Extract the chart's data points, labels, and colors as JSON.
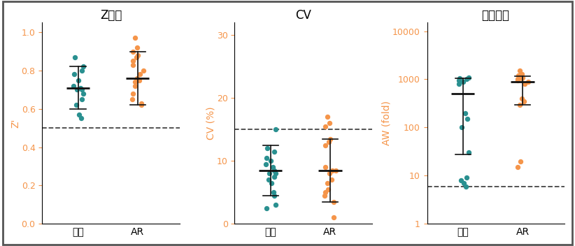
{
  "panel1": {
    "title": "Z因子",
    "ylabel": "Z'",
    "ylim": [
      0.0,
      1.05
    ],
    "yticks": [
      0.0,
      0.2,
      0.4,
      0.6,
      0.8,
      1.0
    ],
    "dashed_line": 0.5,
    "teal_data": [
      0.82,
      0.87,
      0.8,
      0.78,
      0.75,
      0.72,
      0.71,
      0.7,
      0.7,
      0.68,
      0.65,
      0.62,
      0.57,
      0.55
    ],
    "teal_mean": 0.71,
    "teal_sd_low": 0.6,
    "teal_sd_high": 0.82,
    "orange_data": [
      0.97,
      0.92,
      0.9,
      0.88,
      0.87,
      0.85,
      0.83,
      0.8,
      0.78,
      0.76,
      0.75,
      0.74,
      0.72,
      0.68,
      0.65,
      0.63,
      0.62
    ],
    "orange_mean": 0.76,
    "orange_sd_low": 0.62,
    "orange_sd_high": 0.9,
    "xtick_labels": [
      "传统",
      "AR"
    ]
  },
  "panel2": {
    "title": "CV",
    "ylabel": "CV (%)",
    "ylim": [
      0,
      32
    ],
    "yticks": [
      0,
      10,
      20,
      30
    ],
    "dashed_line": 15,
    "teal_data": [
      15.0,
      12.0,
      11.5,
      10.5,
      10.0,
      9.5,
      9.0,
      8.5,
      8.0,
      8.0,
      7.5,
      7.0,
      6.5,
      5.0,
      4.5,
      3.0,
      2.5
    ],
    "teal_mean": 8.5,
    "teal_sd_low": 4.5,
    "teal_sd_high": 12.5,
    "orange_data": [
      17.0,
      16.0,
      15.5,
      13.5,
      13.0,
      12.5,
      9.0,
      8.5,
      8.5,
      8.0,
      7.0,
      6.5,
      5.5,
      5.0,
      4.5,
      3.5,
      1.0
    ],
    "orange_mean": 8.5,
    "orange_sd_low": 3.5,
    "orange_sd_high": 13.5,
    "xtick_labels": [
      "传统",
      "AR"
    ]
  },
  "panel3": {
    "title": "检测窗口",
    "ylabel": "AW (fold)",
    "ylim": [
      1,
      15000
    ],
    "yticks": [
      1,
      10,
      100,
      1000,
      10000
    ],
    "dashed_line": 6,
    "teal_data": [
      1100,
      1050,
      1000,
      950,
      900,
      800,
      200,
      150,
      100,
      30,
      9,
      8,
      7,
      6
    ],
    "teal_mean": 500,
    "teal_sd_low": 28,
    "teal_sd_high": 1050,
    "orange_data": [
      1500,
      1300,
      1200,
      1100,
      1050,
      1000,
      950,
      900,
      800,
      400,
      350,
      300,
      20,
      15
    ],
    "orange_mean": 900,
    "orange_sd_low": 300,
    "orange_sd_high": 1150,
    "xtick_labels": [
      "传统",
      "AR"
    ]
  },
  "teal_color": "#2a9090",
  "orange_color": "#f5954a",
  "error_bar_color": "#111111",
  "dashed_color": "#444444",
  "label_color_orange": "#f5954a",
  "tick_color_orange": "#f5954a"
}
